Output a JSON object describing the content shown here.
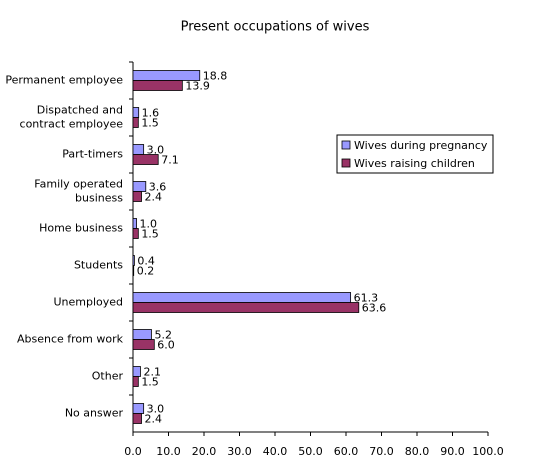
{
  "chart_data": {
    "type": "bar",
    "orientation": "horizontal",
    "title": "Present occupations of wives",
    "categories": [
      "Permanent employee",
      "Dispatched and\ncontract employee",
      "Part-timers",
      "Family operated\nbusiness",
      "Home business",
      "Students",
      "Unemployed",
      "Absence from work",
      "Other",
      "No answer"
    ],
    "series": [
      {
        "name": "Wives during pregnancy",
        "color": "#9999ff",
        "values": [
          18.8,
          1.6,
          3.0,
          3.6,
          1.0,
          0.4,
          61.3,
          5.2,
          2.1,
          3.0
        ],
        "value_labels": [
          "18.8",
          "1.6",
          "3.0",
          "3.6",
          "1.0",
          "0.4",
          "61.3",
          "5.2",
          "2.1",
          "3.0"
        ]
      },
      {
        "name": "Wives raising children",
        "color": "#993366",
        "values": [
          13.9,
          1.5,
          7.1,
          2.4,
          1.5,
          0.2,
          63.6,
          6.0,
          1.5,
          2.4
        ],
        "value_labels": [
          "13.9",
          "1.5",
          "7.1",
          "2.4",
          "1.5",
          "0.2",
          "63.6",
          "6.0",
          "1.5",
          "2.4"
        ]
      }
    ],
    "xlim": [
      0,
      100
    ],
    "xticks": [
      {
        "value": 0,
        "label": "0.0"
      },
      {
        "value": 10,
        "label": "10.0"
      },
      {
        "value": 20,
        "label": "20.0"
      },
      {
        "value": 30,
        "label": "30.0"
      },
      {
        "value": 40,
        "label": "40.0"
      },
      {
        "value": 50,
        "label": "50.0"
      },
      {
        "value": 60,
        "label": "60.0"
      },
      {
        "value": 70,
        "label": "70.0"
      },
      {
        "value": 80,
        "label": "80.0"
      },
      {
        "value": 90,
        "label": "90.0"
      },
      {
        "value": 100,
        "label": "100.0"
      }
    ],
    "grid": false,
    "legend": "upper right"
  }
}
